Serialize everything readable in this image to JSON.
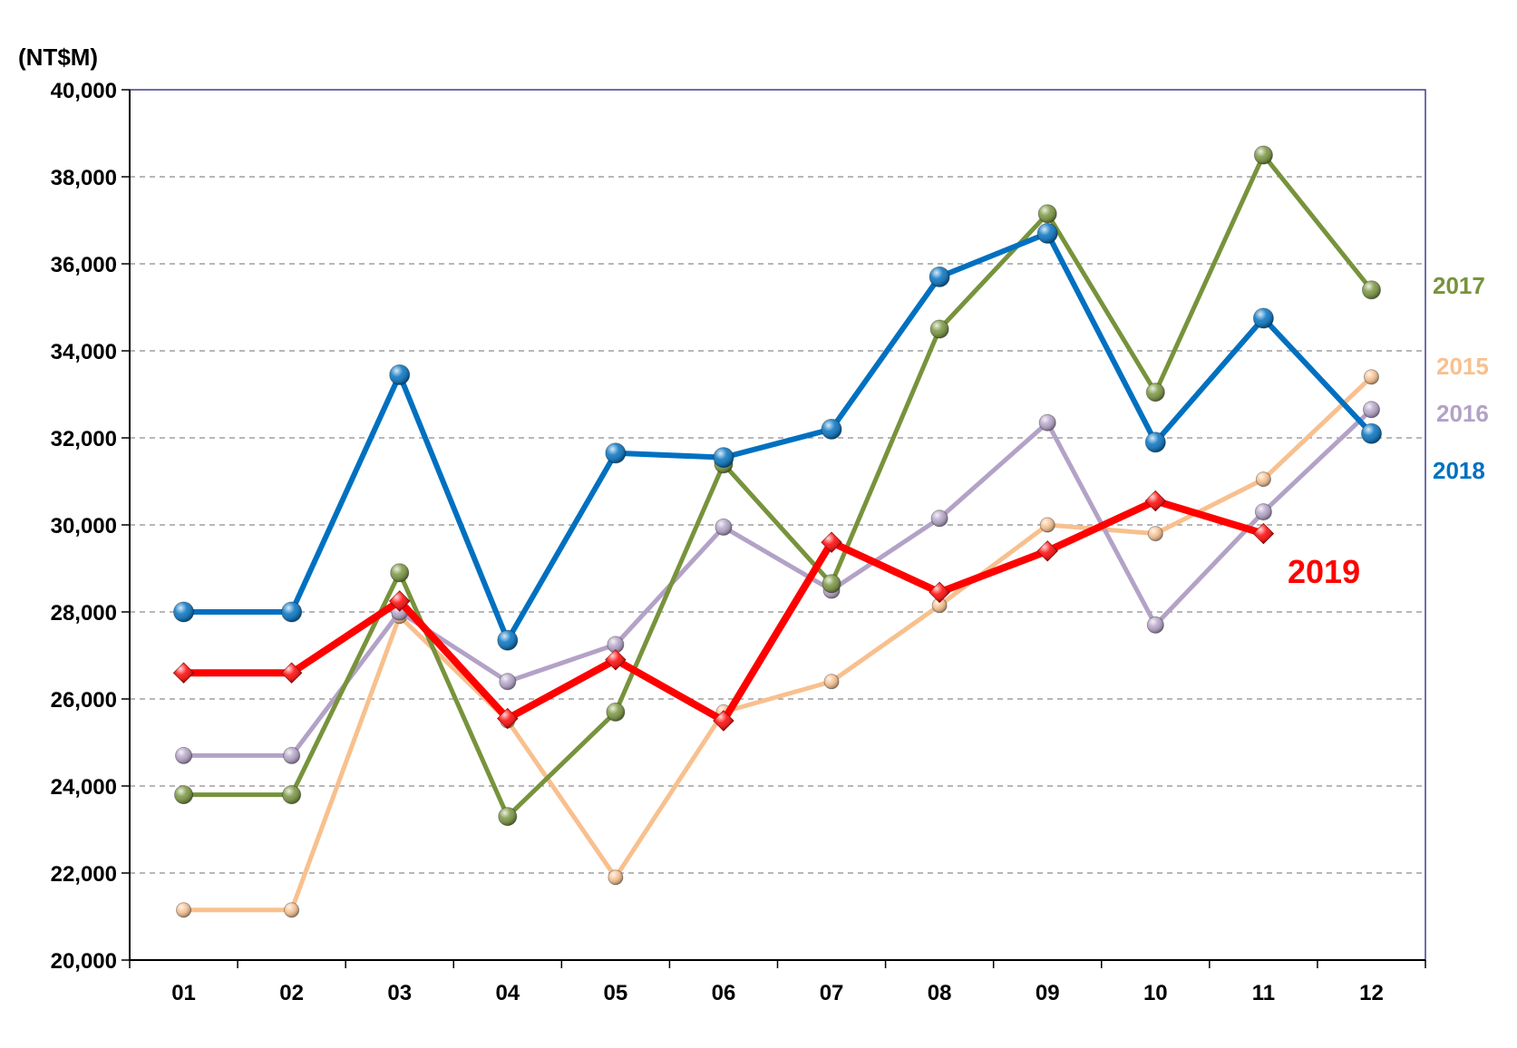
{
  "chart_data": {
    "type": "line",
    "unit_label": "(NT$M)",
    "categories": [
      "01",
      "02",
      "03",
      "04",
      "05",
      "06",
      "07",
      "08",
      "09",
      "10",
      "11",
      "12"
    ],
    "ylim": [
      20000,
      40000
    ],
    "y_ticks": [
      "20,000",
      "22,000",
      "24,000",
      "26,000",
      "28,000",
      "30,000",
      "32,000",
      "34,000",
      "36,000",
      "38,000",
      "40,000"
    ],
    "y_tick_values": [
      20000,
      22000,
      24000,
      26000,
      28000,
      30000,
      32000,
      34000,
      36000,
      38000,
      40000
    ],
    "grid": "horizontal dashed",
    "series": [
      {
        "name": "2015",
        "color": "#f8c08e",
        "values": [
          21150,
          21150,
          27900,
          25500,
          21900,
          25700,
          26400,
          28150,
          30000,
          29800,
          31050,
          33400
        ]
      },
      {
        "name": "2016",
        "color": "#b3a2c7",
        "values": [
          24700,
          24700,
          28000,
          26400,
          27250,
          29950,
          28500,
          30150,
          32350,
          27700,
          30300,
          32650
        ]
      },
      {
        "name": "2017",
        "color": "#77933c",
        "values": [
          23800,
          23800,
          28900,
          23300,
          25700,
          31400,
          28650,
          34500,
          37150,
          33050,
          38500,
          35400
        ]
      },
      {
        "name": "2018",
        "color": "#0070c0",
        "values": [
          28000,
          28000,
          33450,
          27350,
          31650,
          31550,
          32200,
          35700,
          36700,
          31900,
          34750,
          32100
        ]
      },
      {
        "name": "2019",
        "color": "#ff0000",
        "values": [
          26600,
          26600,
          28250,
          25550,
          26900,
          25500,
          29600,
          28450,
          29400,
          30550,
          29800,
          null
        ]
      }
    ]
  }
}
